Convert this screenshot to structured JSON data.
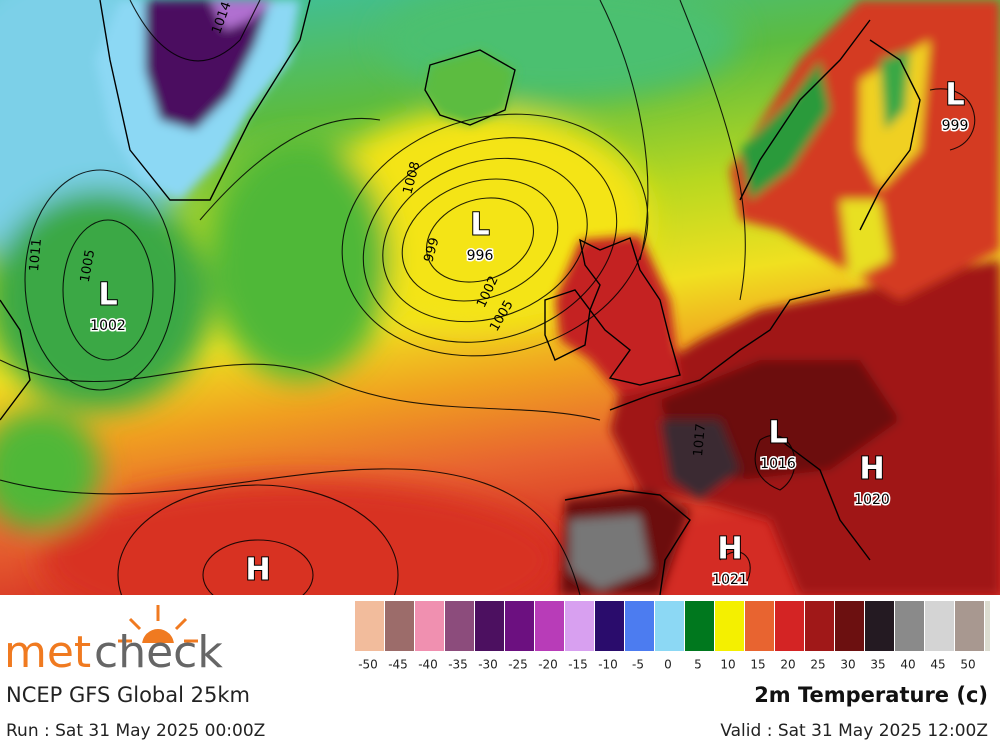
{
  "map": {
    "pressure_centers": [
      {
        "kind": "L",
        "value": "996"
      },
      {
        "kind": "L",
        "value": "1002"
      },
      {
        "kind": "L",
        "value": "999"
      },
      {
        "kind": "L",
        "value": "1016"
      },
      {
        "kind": "H",
        "value": "1020"
      },
      {
        "kind": "H",
        "value": "1021"
      },
      {
        "kind": "H"
      }
    ],
    "contour_labels": [
      "1014",
      "1008",
      "999",
      "1002",
      "1005",
      "1011",
      "1005",
      "1017"
    ]
  },
  "legend": {
    "colors": [
      "#f2bc9c",
      "#9c6c6a",
      "#f090b0",
      "#8c4c7c",
      "#4c1060",
      "#6c1080",
      "#b83cb8",
      "#d8a0f0",
      "#2a0c6c",
      "#4c7cf0",
      "#8cd8f4",
      "#00781e",
      "#f4f000",
      "#e86430",
      "#d42424",
      "#a01818",
      "#6c1010",
      "#241a22",
      "#8a8a8a",
      "#d4d4d4",
      "#a89890"
    ],
    "extra_color": "#dcdcd0",
    "labels": [
      -50,
      -45,
      -40,
      -35,
      -30,
      -25,
      -20,
      -15,
      -10,
      -5,
      0,
      5,
      10,
      15,
      20,
      25,
      30,
      35,
      40,
      45,
      50
    ]
  },
  "footer": {
    "brand_first": "met",
    "brand_second": "check",
    "model": "NCEP GFS Global 25km",
    "field": "2m Temperature (c)",
    "run": "Run : Sat 31 May 2025 00:00Z",
    "valid": "Valid : Sat 31 May 2025 12:00Z"
  }
}
